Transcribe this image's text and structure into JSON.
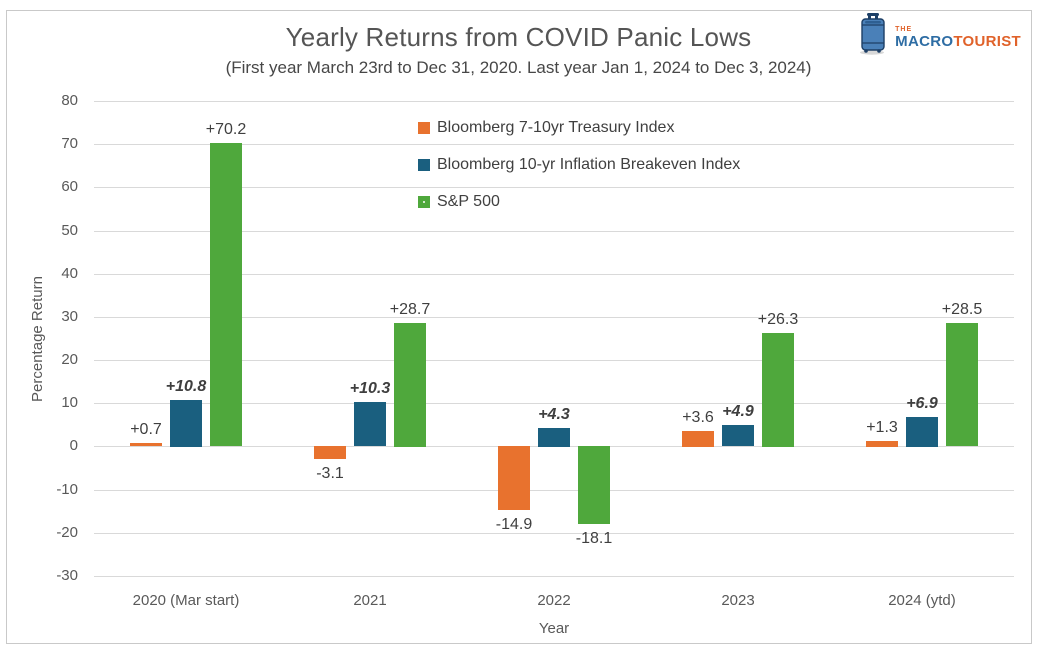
{
  "logo": {
    "the": "THE",
    "macro": "MACRO",
    "tourist": "TOURIST",
    "macro_color": "#2e6da4",
    "tourist_color": "#e0622a",
    "suitcase_color": "#4a80b8"
  },
  "chart_data": {
    "type": "bar",
    "title": "Yearly Returns from COVID Panic Lows",
    "subtitle": "(First year March 23rd to Dec 31, 2020. Last year Jan 1, 2024 to Dec 3, 2024)",
    "xlabel": "Year",
    "ylabel": "Percentage Return",
    "ylim": [
      -30,
      80
    ],
    "ytick_step": 10,
    "grid": true,
    "legend_position": "inside-top-left",
    "categories": [
      "2020 (Mar start)",
      "2021",
      "2022",
      "2023",
      "2024 (ytd)"
    ],
    "series": [
      {
        "name": "Bloomberg 7-10yr Treasury Index",
        "color": "#e8722e",
        "pattern": "solid",
        "label_style": "normal",
        "values": [
          0.7,
          -3.1,
          -14.9,
          3.6,
          1.3
        ],
        "labels": [
          "+0.7",
          "-3.1",
          "-14.9",
          "+3.6",
          "+1.3"
        ]
      },
      {
        "name": "Bloomberg 10-yr Inflation Breakeven Index",
        "color": "#1a5f7f",
        "pattern": "solid",
        "label_style": "bold-italic",
        "values": [
          10.8,
          10.3,
          4.3,
          4.9,
          6.9
        ],
        "labels": [
          "+10.8",
          "+10.3",
          "+4.3",
          "+4.9",
          "+6.9"
        ]
      },
      {
        "name": "S&P 500",
        "color": "#4fa83c",
        "pattern": "dotted",
        "label_style": "normal",
        "values": [
          70.2,
          28.7,
          -18.1,
          26.3,
          28.5
        ],
        "labels": [
          "+70.2",
          "+28.7",
          "-18.1",
          "+26.3",
          "+28.5"
        ]
      }
    ],
    "colors": {
      "gridline": "#d9d9d9",
      "axis_text": "#595959",
      "data_label_text": "#3f3f3f",
      "frame_border": "#c9c9c9"
    }
  }
}
